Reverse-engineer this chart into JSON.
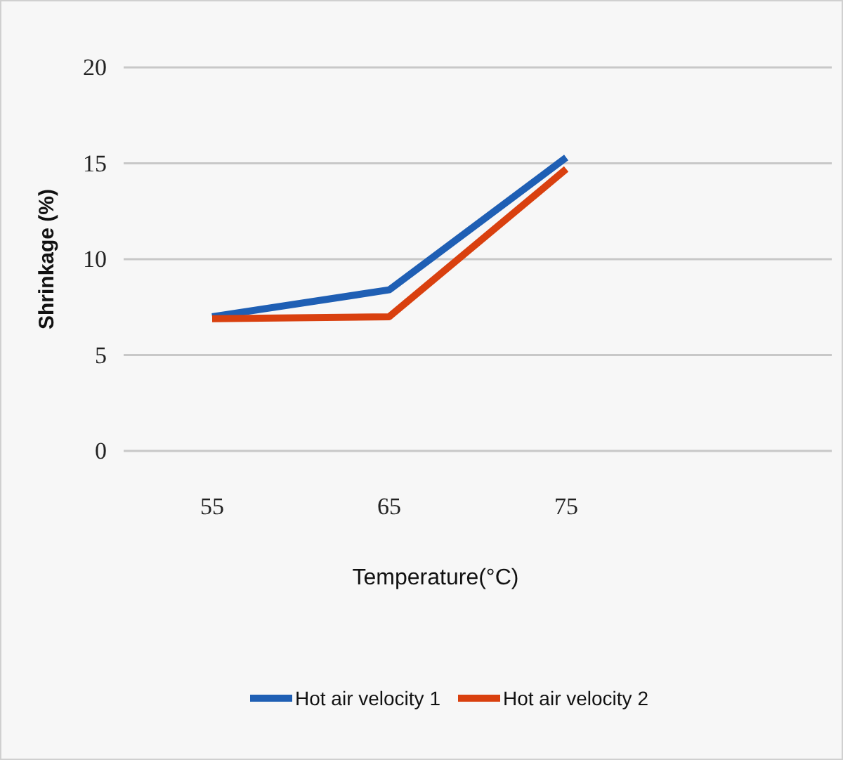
{
  "chart_data": {
    "type": "line",
    "xlabel": "Temperature(°C)",
    "ylabel": "Shrinkage (%)",
    "categories": [
      "55",
      "65",
      "75",
      null
    ],
    "ylim": [
      0,
      20
    ],
    "yticks": [
      0,
      5,
      10,
      15,
      20
    ],
    "grid": "y",
    "legend": "bottom",
    "marker": "none",
    "line_style": "solid",
    "series": [
      {
        "name": "Hot air velocity 1",
        "color": "#1f5fb4",
        "values": [
          7,
          8.4,
          15.3,
          null
        ]
      },
      {
        "name": "Hot air velocity 2",
        "color": "#d9400f",
        "values": [
          6.9,
          7,
          14.7,
          null
        ]
      }
    ]
  }
}
